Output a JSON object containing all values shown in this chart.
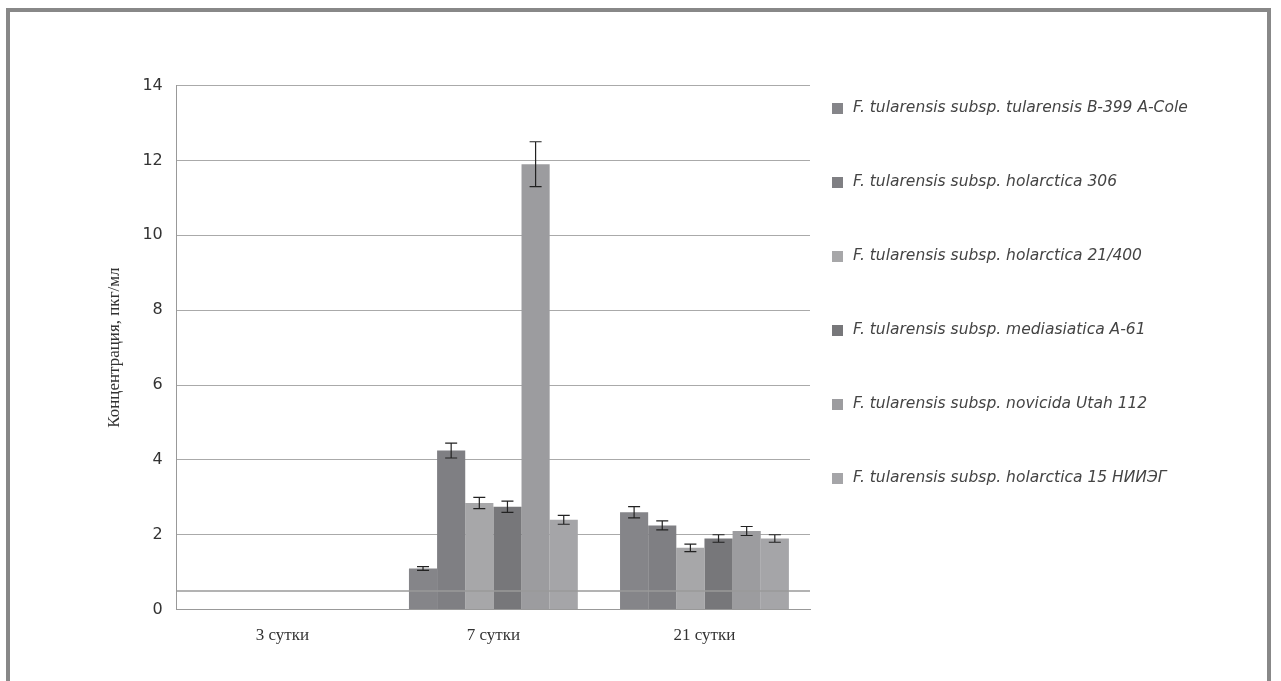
{
  "chart_data": {
    "type": "bar",
    "ylabel": "Концентрация, пкг/мл",
    "categories": [
      "3 сутки",
      "7 сутки",
      "21 сутки"
    ],
    "ylim": [
      0,
      14
    ],
    "yticks": [
      0,
      2,
      4,
      6,
      8,
      10,
      12,
      14
    ],
    "grid": "y",
    "legend": "right",
    "series": [
      {
        "name": "F. tularensis subsp. tularensis B-399 A-Cole",
        "color": "#858589",
        "values": [
          null,
          1.1,
          2.6
        ],
        "errors": [
          null,
          0.05,
          0.15
        ]
      },
      {
        "name": "F. tularensis subsp. holarctica 306",
        "color": "#7f7f83",
        "values": [
          null,
          4.25,
          2.25
        ],
        "errors": [
          null,
          0.2,
          0.12
        ]
      },
      {
        "name": "F. tularensis subsp. holarctica 21/400",
        "color": "#a7a7a9",
        "values": [
          null,
          2.85,
          1.65
        ],
        "errors": [
          null,
          0.15,
          0.1
        ]
      },
      {
        "name": "F. tularensis subsp. mediasiatica A-61",
        "color": "#77777a",
        "values": [
          null,
          2.75,
          1.9
        ],
        "errors": [
          null,
          0.15,
          0.1
        ]
      },
      {
        "name": "F. tularensis subsp. novicida Utah 112",
        "color": "#9c9c9f",
        "values": [
          null,
          11.9,
          2.1
        ],
        "errors": [
          null,
          0.6,
          0.12
        ]
      },
      {
        "name": "F. tularensis subsp. holarctica 15 НИИЭГ",
        "color": "#a5a5a8",
        "values": [
          null,
          2.4,
          1.9
        ],
        "errors": [
          null,
          0.12,
          0.1
        ]
      }
    ],
    "ref_lines": [
      {
        "axis": "y",
        "value": 0.5,
        "color": "#9a9a9a"
      }
    ]
  }
}
